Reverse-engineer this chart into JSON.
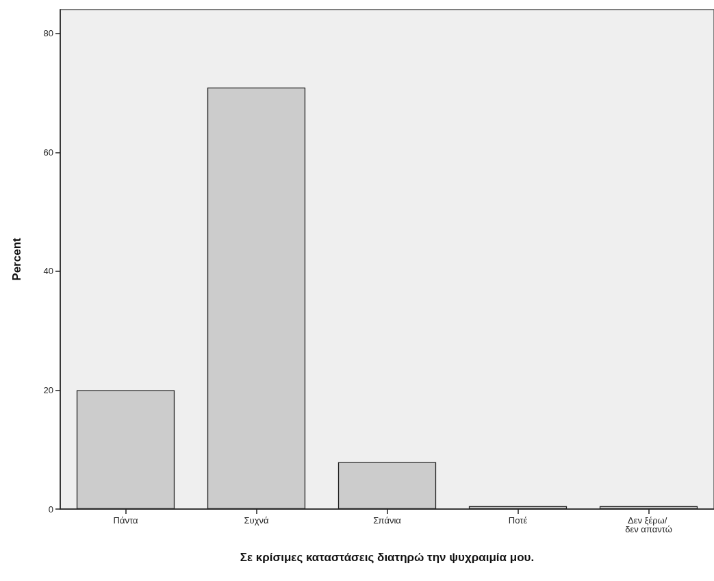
{
  "chart_data": {
    "type": "bar",
    "xlabel": "Σε κρίσιμες καταστάσεις διατηρώ την ψυχραιμία μου.",
    "ylabel": "Percent",
    "categories": [
      "Πάντα",
      "Συχνά",
      "Σπάνια",
      "Ποτέ",
      "Δεν ξέρω/ δεν απαντώ"
    ],
    "values": [
      20.0,
      70.9,
      7.9,
      0.5,
      0.5
    ],
    "color": "#cccccc",
    "ylim": [
      0,
      84
    ],
    "yticks": [
      0,
      20,
      40,
      60,
      80
    ],
    "grid": false
  }
}
